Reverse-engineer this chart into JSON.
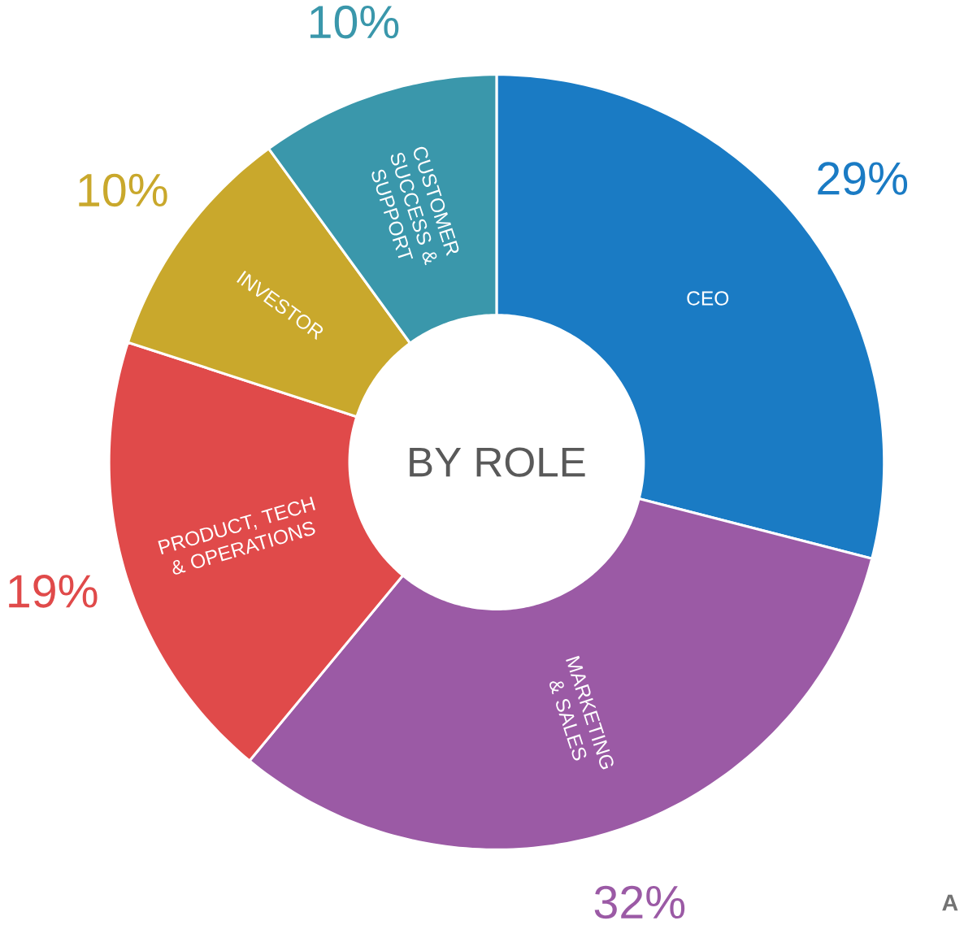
{
  "chart_data": {
    "type": "donut",
    "title": "BY ROLE",
    "categories": [
      "CEO",
      "MARKETING & SALES",
      "PRODUCT, TECH & OPERATIONS",
      "INVESTOR",
      "CUSTOMER SUCCESS & SUPPORT"
    ],
    "values": [
      29,
      32,
      19,
      10,
      10
    ],
    "colors": [
      "#1a7bc4",
      "#9b5aa5",
      "#e04a4a",
      "#c9a82c",
      "#3a97ab"
    ],
    "value_labels": [
      "29%",
      "32%",
      "19%",
      "10%",
      "10%"
    ],
    "annotations": [
      "A"
    ]
  }
}
